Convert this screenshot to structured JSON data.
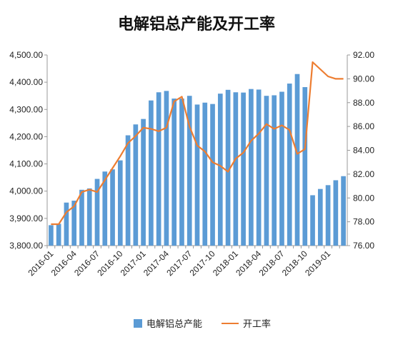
{
  "chart_data": {
    "type": "bar+line",
    "title": "电解铝总产能及开工率",
    "x": [
      "2016-01",
      "2016-02",
      "2016-03",
      "2016-04",
      "2016-05",
      "2016-06",
      "2016-07",
      "2016-08",
      "2016-09",
      "2016-10",
      "2016-11",
      "2016-12",
      "2017-01",
      "2017-02",
      "2017-03",
      "2017-04",
      "2017-05",
      "2017-06",
      "2017-07",
      "2017-08",
      "2017-09",
      "2017-10",
      "2017-11",
      "2017-12",
      "2018-01",
      "2018-02",
      "2018-03",
      "2018-04",
      "2018-05",
      "2018-06",
      "2018-07",
      "2018-08",
      "2018-09",
      "2018-10",
      "2018-11",
      "2018-12",
      "2019-01",
      "2019-02",
      "2019-03"
    ],
    "x_tick_labels": [
      "2016-01",
      "2016-04",
      "2016-07",
      "2016-10",
      "2017-01",
      "2017-04",
      "2017-07",
      "2017-10",
      "2018-01",
      "2018-04",
      "2018-07",
      "2018-10",
      "2019-01"
    ],
    "series": [
      {
        "name": "电解铝总产能",
        "type": "bar",
        "axis": "left",
        "color": "#5b9bd5",
        "values": [
          3875,
          3880,
          3958,
          3965,
          4005,
          4010,
          4045,
          4072,
          4080,
          4113,
          4205,
          4245,
          4265,
          4333,
          4363,
          4368,
          4340,
          4340,
          4350,
          4318,
          4325,
          4320,
          4358,
          4372,
          4363,
          4362,
          4375,
          4373,
          4350,
          4352,
          4365,
          4395,
          4430,
          4382,
          3985,
          4008,
          4022,
          4040,
          4055
        ]
      },
      {
        "name": "开工率",
        "type": "line",
        "axis": "right",
        "color": "#ed7d31",
        "values": [
          77.8,
          77.8,
          78.8,
          79.3,
          80.5,
          80.7,
          80.5,
          81.5,
          82.5,
          83.5,
          84.6,
          85.2,
          85.9,
          85.8,
          85.6,
          85.9,
          88.1,
          88.5,
          86.0,
          84.4,
          83.9,
          83.0,
          82.7,
          82.2,
          83.3,
          83.8,
          84.8,
          85.4,
          86.2,
          85.8,
          86.1,
          85.7,
          83.7,
          84.1,
          91.4,
          90.8,
          90.2,
          90.0,
          90.0
        ]
      }
    ],
    "y_left": {
      "min": 3800,
      "max": 4500,
      "step": 100,
      "tick_labels": [
        "3,800.00",
        "3,900.00",
        "4,000.00",
        "4,100.00",
        "4,200.00",
        "4,300.00",
        "4,400.00",
        "4,500.00"
      ]
    },
    "y_right": {
      "min": 76,
      "max": 92,
      "step": 2,
      "tick_labels": [
        "76.00",
        "78.00",
        "80.00",
        "82.00",
        "84.00",
        "86.00",
        "88.00",
        "90.00",
        "92.00"
      ]
    },
    "grid": false,
    "legend_position": "bottom",
    "xlabel": "",
    "ylabel": ""
  },
  "legend": {
    "bar_label": "电解铝总产能",
    "line_label": "开工率"
  }
}
